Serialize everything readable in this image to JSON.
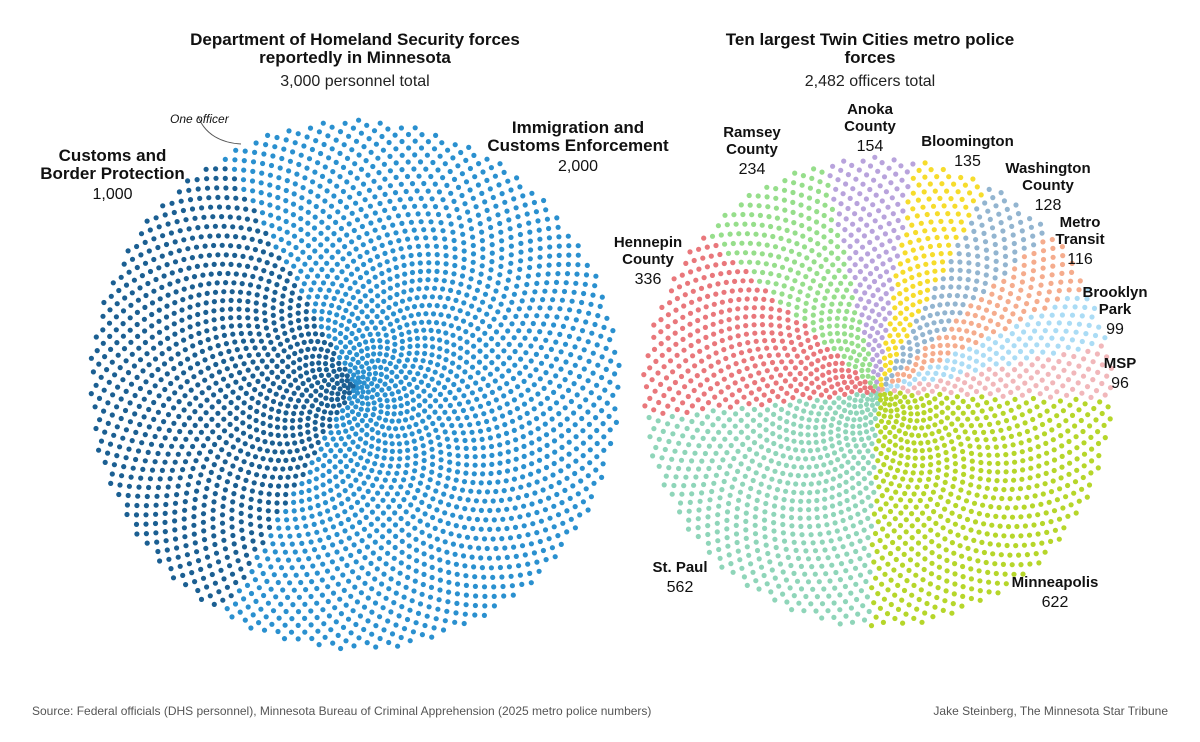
{
  "annotation": "One officer",
  "footer": {
    "source": "Source: Federal officials (DHS personnel), Minnesota Bureau of Criminal Apprehension (2025 metro police numbers)",
    "credit": "Jake Steinberg, The Minnesota Star Tribune"
  },
  "chart_data": [
    {
      "type": "pie",
      "style": "dot-pie",
      "title": "Department of Homeland Security forces reportedly in Minnesota",
      "subtitle": "3,000 personnel total",
      "categories": [
        "Customs and Border Protection",
        "Immigration and Customs Enforcement"
      ],
      "values": [
        1000,
        2000
      ],
      "value_labels": [
        "1,000",
        "2,000"
      ],
      "colors": [
        "#1b5f92",
        "#2a90cf"
      ]
    },
    {
      "type": "pie",
      "style": "dot-pie",
      "title": "Ten largest Twin Cities metro police forces",
      "subtitle": "2,482 officers total",
      "categories": [
        "Minneapolis",
        "St. Paul",
        "Hennepin County",
        "Ramsey County",
        "Anoka County",
        "Bloomington",
        "Washington County",
        "Metro Transit",
        "Brooklyn Park",
        "MSP"
      ],
      "values": [
        622,
        562,
        336,
        234,
        154,
        135,
        128,
        116,
        99,
        96
      ],
      "colors": [
        "#b6d62a",
        "#8fd5b9",
        "#e9777b",
        "#96de8b",
        "#b8a3dc",
        "#f6dc2c",
        "#93b5d0",
        "#f5ac8d",
        "#abdcf5",
        "#f1b7ba"
      ]
    }
  ]
}
